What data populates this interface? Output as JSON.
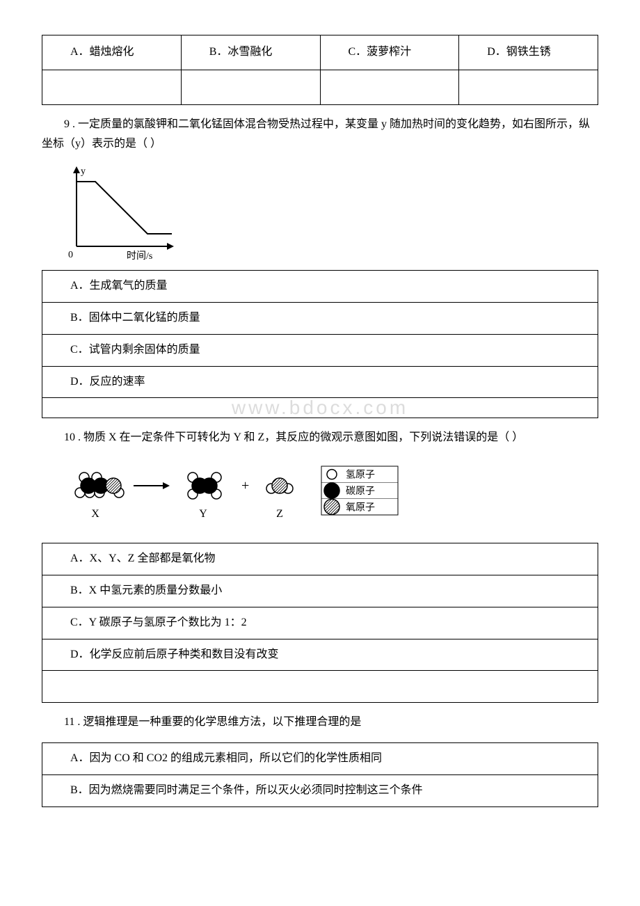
{
  "q8": {
    "options": {
      "a_label": "A．蜡烛熔化",
      "b_label": "B．冰雪融化",
      "c_label": "C．菠萝榨汁",
      "d_label": "D．钢铁生锈"
    }
  },
  "q9": {
    "text": "9 . 一定质量的氯酸钾和二氧化锰固体混合物受热过程中，某变量 y 随加热时间的变化趋势，如右图所示，纵坐标（y）表示的是（ ）",
    "chart": {
      "y_axis_label": "y",
      "origin_label": "0",
      "x_axis_label": "时间/s",
      "axis_color": "#000000",
      "curve_color": "#000000",
      "line_width": 2,
      "width": 160,
      "height": 140,
      "x_points": [
        18,
        45,
        120,
        155
      ],
      "y_points": [
        25,
        25,
        100,
        100
      ]
    },
    "options": {
      "a": "A．生成氧气的质量",
      "b": "B．固体中二氧化锰的质量",
      "c": "C．试管内剩余固体的质量",
      "d": "D．反应的速率"
    },
    "watermark": "www.bdocx.com"
  },
  "q10": {
    "text": "10 . 物质 X 在一定条件下可转化为 Y 和 Z，其反应的微观示意图如图，下列说法错误的是（ ）",
    "diagram": {
      "label_x": "X",
      "label_y": "Y",
      "label_z": "Z",
      "arrow": "→",
      "plus": "+",
      "legend_h": "氢原子",
      "legend_c": "碳原子",
      "legend_o": "氧原子",
      "atom_radius_small": 7,
      "atom_radius_large": 11,
      "color_h_fill": "#ffffff",
      "color_h_stroke": "#000000",
      "color_c_fill": "#000000",
      "color_o_pattern": "#000000",
      "stroke_width": 1.5
    },
    "options": {
      "a": "A．X、Y、Z 全部都是氧化物",
      "b": "B．X 中氢元素的质量分数最小",
      "c": "C．Y 碳原子与氢原子个数比为 1：2",
      "d": "D．化学反应前后原子种类和数目没有改变"
    }
  },
  "q11": {
    "text": "11 . 逻辑推理是一种重要的化学思维方法，以下推理合理的是",
    "options": {
      "a": "A．因为 CO 和 CO2 的组成元素相同，所以它们的化学性质相同",
      "b": "B．因为燃烧需要同时满足三个条件，所以灭火必须同时控制这三个条件"
    }
  }
}
